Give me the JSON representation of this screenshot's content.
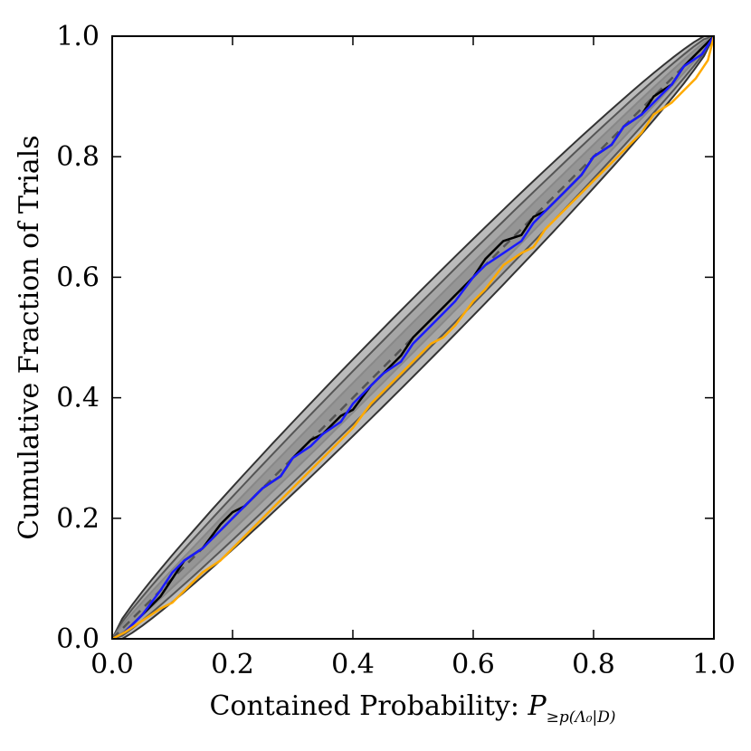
{
  "chart_data": {
    "type": "line",
    "title": "",
    "xlabel": "Contained Probability: ",
    "xlabel_math": {
      "base": "P",
      "subscript": "≥p(Λ₀|D)"
    },
    "ylabel": "Cumulative Fraction of Trials",
    "xlim": [
      0.0,
      1.0
    ],
    "ylim": [
      0.0,
      1.0
    ],
    "grid": false,
    "xticks": [
      0.0,
      0.2,
      0.4,
      0.6,
      0.8,
      1.0
    ],
    "yticks": [
      0.0,
      0.2,
      0.4,
      0.6,
      0.8,
      1.0
    ],
    "xtick_labels": [
      "0.0",
      "0.2",
      "0.4",
      "0.6",
      "0.8",
      "1.0"
    ],
    "ytick_labels": [
      "0.0",
      "0.2",
      "0.4",
      "0.6",
      "0.8",
      "1.0"
    ],
    "diagonal": {
      "name": "expected",
      "style": "dashed",
      "color": "#555555"
    },
    "confidence_bands": [
      {
        "name": "band-outer",
        "half_width": 0.065,
        "fill": "#bbbbbb",
        "edge": "#333333"
      },
      {
        "name": "band-middle",
        "half_width": 0.045,
        "fill": "#a6a6a6",
        "edge": "#555555"
      },
      {
        "name": "band-inner",
        "half_width": 0.025,
        "fill": "#959595",
        "edge": "#888888"
      }
    ],
    "series": [
      {
        "name": "black",
        "color": "#000000",
        "x": [
          0.0,
          0.02,
          0.05,
          0.08,
          0.1,
          0.12,
          0.15,
          0.18,
          0.2,
          0.22,
          0.25,
          0.28,
          0.3,
          0.33,
          0.35,
          0.38,
          0.4,
          0.43,
          0.45,
          0.48,
          0.5,
          0.53,
          0.55,
          0.57,
          0.6,
          0.62,
          0.65,
          0.68,
          0.7,
          0.72,
          0.75,
          0.78,
          0.8,
          0.83,
          0.85,
          0.88,
          0.9,
          0.93,
          0.95,
          0.98,
          1.0
        ],
        "y": [
          0.0,
          0.01,
          0.04,
          0.07,
          0.1,
          0.13,
          0.15,
          0.19,
          0.21,
          0.22,
          0.25,
          0.27,
          0.3,
          0.33,
          0.34,
          0.37,
          0.38,
          0.42,
          0.44,
          0.47,
          0.5,
          0.53,
          0.55,
          0.57,
          0.6,
          0.63,
          0.66,
          0.67,
          0.7,
          0.71,
          0.74,
          0.77,
          0.8,
          0.82,
          0.85,
          0.87,
          0.9,
          0.92,
          0.95,
          0.98,
          1.0
        ]
      },
      {
        "name": "blue",
        "color": "#1a1aff",
        "x": [
          0.0,
          0.02,
          0.05,
          0.08,
          0.1,
          0.12,
          0.15,
          0.18,
          0.2,
          0.22,
          0.25,
          0.28,
          0.3,
          0.33,
          0.35,
          0.38,
          0.4,
          0.43,
          0.45,
          0.48,
          0.5,
          0.53,
          0.55,
          0.57,
          0.6,
          0.62,
          0.65,
          0.68,
          0.7,
          0.72,
          0.75,
          0.78,
          0.8,
          0.83,
          0.85,
          0.88,
          0.9,
          0.93,
          0.95,
          0.98,
          1.0
        ],
        "y": [
          0.0,
          0.01,
          0.04,
          0.08,
          0.11,
          0.13,
          0.15,
          0.18,
          0.2,
          0.22,
          0.25,
          0.27,
          0.3,
          0.32,
          0.34,
          0.36,
          0.39,
          0.42,
          0.44,
          0.46,
          0.49,
          0.52,
          0.54,
          0.56,
          0.6,
          0.62,
          0.64,
          0.66,
          0.69,
          0.71,
          0.74,
          0.77,
          0.8,
          0.82,
          0.85,
          0.87,
          0.89,
          0.92,
          0.95,
          0.97,
          1.0
        ]
      },
      {
        "name": "orange",
        "color": "#ffaa00",
        "x": [
          0.0,
          0.02,
          0.05,
          0.08,
          0.1,
          0.12,
          0.15,
          0.18,
          0.2,
          0.22,
          0.25,
          0.28,
          0.3,
          0.33,
          0.35,
          0.38,
          0.4,
          0.43,
          0.45,
          0.48,
          0.5,
          0.53,
          0.55,
          0.57,
          0.6,
          0.62,
          0.65,
          0.68,
          0.7,
          0.72,
          0.75,
          0.78,
          0.8,
          0.83,
          0.85,
          0.88,
          0.9,
          0.93,
          0.95,
          0.97,
          0.99,
          1.0
        ],
        "y": [
          0.0,
          0.01,
          0.03,
          0.05,
          0.06,
          0.08,
          0.11,
          0.13,
          0.15,
          0.17,
          0.2,
          0.23,
          0.25,
          0.28,
          0.3,
          0.33,
          0.35,
          0.39,
          0.41,
          0.44,
          0.46,
          0.49,
          0.5,
          0.52,
          0.56,
          0.58,
          0.62,
          0.64,
          0.65,
          0.68,
          0.71,
          0.74,
          0.76,
          0.79,
          0.81,
          0.84,
          0.87,
          0.89,
          0.91,
          0.93,
          0.96,
          1.0
        ]
      }
    ]
  }
}
